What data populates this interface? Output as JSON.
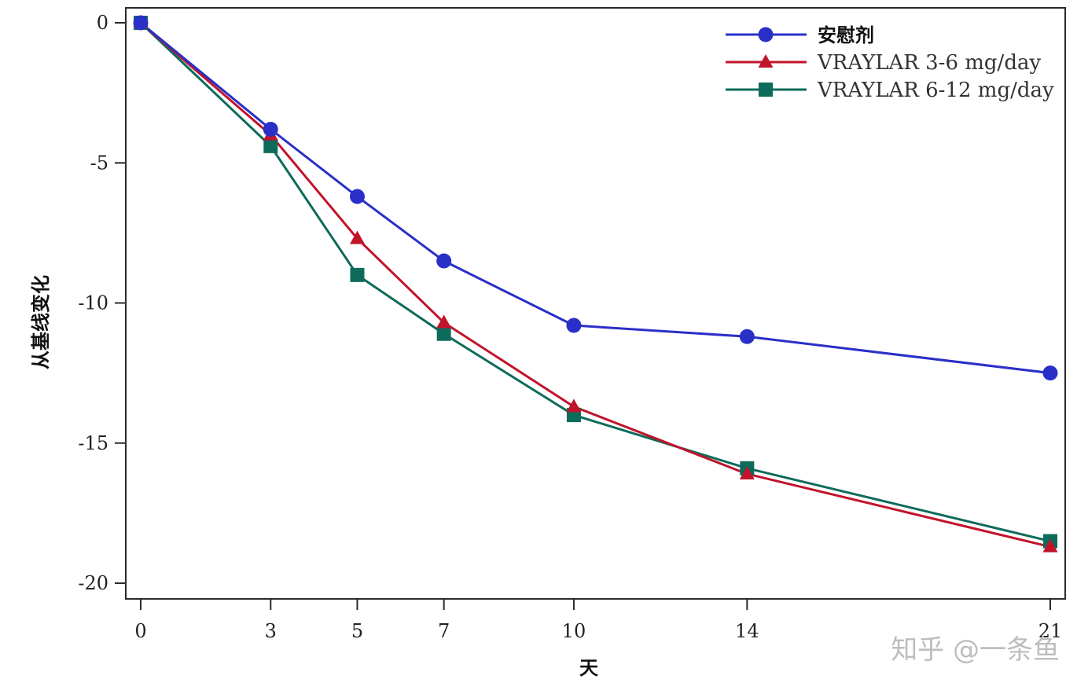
{
  "chart_data": {
    "type": "line",
    "title": "",
    "xlabel": "天",
    "ylabel": "从基线变化",
    "x": [
      0,
      3,
      5,
      7,
      10,
      14,
      21
    ],
    "x_ticks": [
      "0",
      "3",
      "5",
      "7",
      "10",
      "14",
      "21"
    ],
    "y_ticks": [
      "0",
      "-5",
      "-10",
      "-15",
      "-20"
    ],
    "xlim": [
      -0.35,
      21.35
    ],
    "ylim": [
      -20.55,
      0.55
    ],
    "grid": false,
    "legend_position": "top-right",
    "series": [
      {
        "name": "安慰剂",
        "color": "#2a2fc8",
        "marker": "circle",
        "values": [
          0,
          -3.8,
          -6.2,
          -8.5,
          -10.8,
          -11.2,
          -12.5
        ]
      },
      {
        "name": "VRAYLAR 3-6 mg/day",
        "color": "#c0142b",
        "marker": "triangle",
        "values": [
          0,
          -4.0,
          -7.7,
          -10.7,
          -13.7,
          -16.1,
          -18.7
        ]
      },
      {
        "name": "VRAYLAR 6-12 mg/day",
        "color": "#0d6b5b",
        "marker": "square",
        "values": [
          0,
          -4.4,
          -9.0,
          -11.1,
          -14.0,
          -15.9,
          -18.5
        ]
      }
    ]
  },
  "watermark": "知乎 @一条鱼"
}
